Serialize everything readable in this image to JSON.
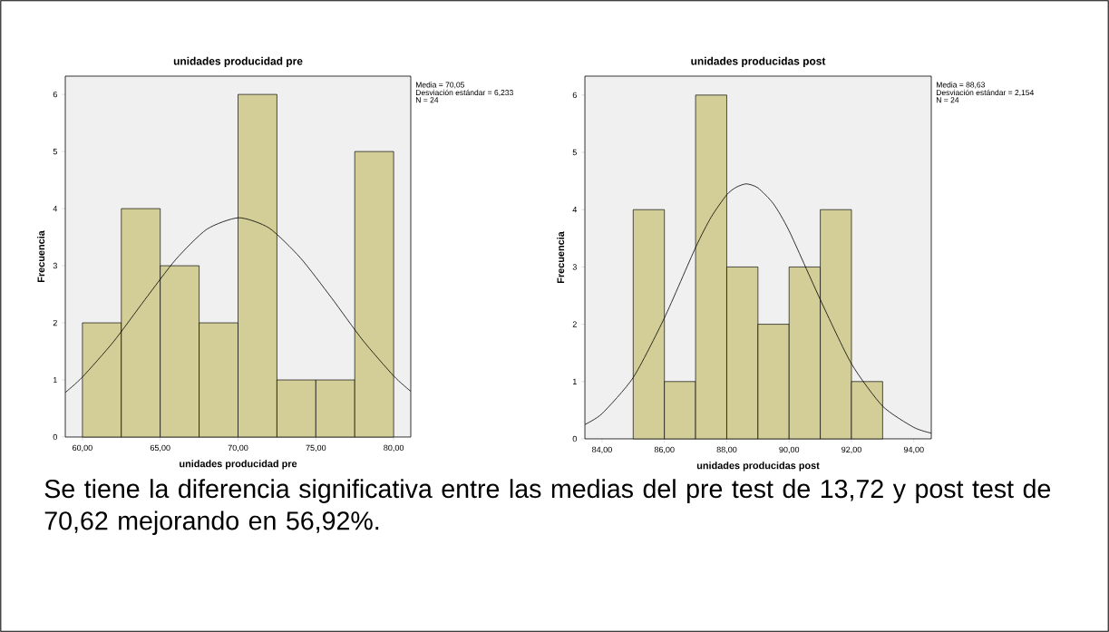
{
  "chart_data": [
    {
      "type": "histogram",
      "title": "unidades producidad pre",
      "xlabel": "unidades producidad pre",
      "ylabel": "Frecuencia",
      "xlim": [
        58.9,
        81.1
      ],
      "ylim": [
        0,
        6.32
      ],
      "xticks": [
        {
          "value": 60,
          "label": "60,00"
        },
        {
          "value": 65,
          "label": "65,00"
        },
        {
          "value": 70,
          "label": "70,00"
        },
        {
          "value": 75,
          "label": "75,00"
        },
        {
          "value": 80,
          "label": "80,00"
        }
      ],
      "yticks": [
        0,
        1,
        2,
        3,
        4,
        5,
        6
      ],
      "series": [
        {
          "type": "histogram",
          "color": "#d3ce97",
          "bins": [
            60,
            62.5,
            65,
            67.5,
            70,
            72.5,
            75,
            77.5,
            80
          ],
          "values": [
            2,
            4,
            3,
            2,
            6,
            1,
            1,
            5
          ]
        },
        {
          "type": "line",
          "color": "#000000",
          "x": [
            58.9,
            60,
            62,
            64,
            66,
            68,
            70.05,
            72,
            74,
            76,
            78,
            80,
            81.1
          ],
          "values": [
            0.78,
            1.05,
            1.67,
            2.4,
            3.11,
            3.64,
            3.84,
            3.66,
            3.14,
            2.44,
            1.7,
            1.07,
            0.8
          ]
        }
      ],
      "annotations": [
        "Media = 70,05",
        "Desviación estándar = 6,233",
        "N = 24"
      ]
    },
    {
      "type": "histogram",
      "title": "unidades producidas post",
      "xlabel": "unidades producidas post",
      "ylabel": "Frecuencia",
      "xlim": [
        83.45,
        94.56
      ],
      "ylim": [
        0,
        6.33
      ],
      "xticks": [
        {
          "value": 84,
          "label": "84,00"
        },
        {
          "value": 86,
          "label": "86,00"
        },
        {
          "value": 88,
          "label": "88,00"
        },
        {
          "value": 90,
          "label": "90,00"
        },
        {
          "value": 92,
          "label": "92,00"
        },
        {
          "value": 94,
          "label": "94,00"
        }
      ],
      "yticks": [
        0,
        1,
        2,
        3,
        4,
        5,
        6
      ],
      "series": [
        {
          "type": "histogram",
          "color": "#d3ce97",
          "bins": [
            85,
            86,
            87,
            88,
            89,
            90,
            91,
            92,
            93
          ],
          "values": [
            4,
            1,
            6,
            3,
            2,
            3,
            4,
            1
          ]
        },
        {
          "type": "line",
          "color": "#000000",
          "x": [
            83.45,
            84,
            85,
            86,
            87,
            87.5,
            88,
            88.3,
            88.63,
            89,
            89.5,
            90,
            91,
            92,
            93,
            94,
            94.56
          ],
          "values": [
            0.25,
            0.44,
            1.07,
            2.11,
            3.34,
            3.87,
            4.26,
            4.39,
            4.45,
            4.38,
            4.1,
            3.63,
            2.43,
            1.31,
            0.57,
            0.2,
            0.1
          ]
        }
      ],
      "annotations": [
        "Media = 88,63",
        "Desviación estándar = 2,154",
        "N = 24"
      ]
    },
    {
      "type": "other",
      "annotations": [
        "Se tiene la diferencia significativa entre las medias del pre test de 13,72 y post test de 70,62 mejorando en 56,92%."
      ]
    }
  ]
}
